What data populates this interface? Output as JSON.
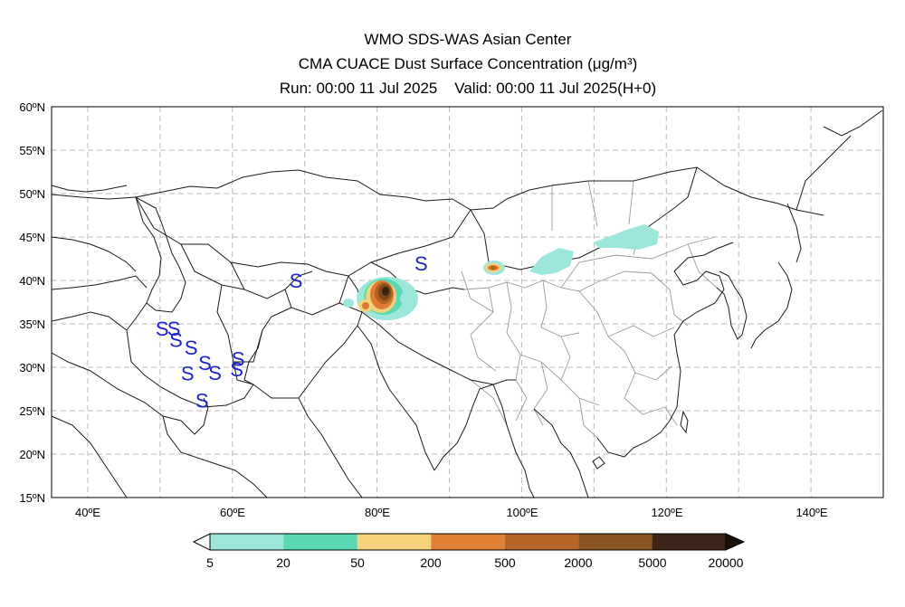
{
  "header": {
    "line1": "WMO SDS-WAS Asian Center",
    "line2": "CMA CUACE Dust Surface Concentration (μg/m³)",
    "line3": "Run: 00:00 11 Jul 2025    Valid: 00:00 11 Jul 2025(H+0)"
  },
  "map": {
    "lon_range": [
      35,
      150
    ],
    "lat_range": [
      15,
      60
    ],
    "lat_ticks": [
      "60ºN",
      "55ºN",
      "50ºN",
      "45ºN",
      "40ºN",
      "35ºN",
      "30ºN",
      "25ºN",
      "20ºN",
      "15ºN"
    ],
    "lon_ticks": [
      "40ºE",
      "60ºE",
      "80ºE",
      "100ºE",
      "120ºE",
      "140ºE"
    ],
    "grid": true,
    "station_symbol": "S",
    "station_color": "#1f24c8",
    "stations": [
      {
        "lon": 50.3,
        "lat": 34.5
      },
      {
        "lon": 51.9,
        "lat": 34.5
      },
      {
        "lon": 52.2,
        "lat": 33.2
      },
      {
        "lon": 54.3,
        "lat": 32.3
      },
      {
        "lon": 68.8,
        "lat": 40.0
      },
      {
        "lon": 56.2,
        "lat": 30.5
      },
      {
        "lon": 60.8,
        "lat": 31.0
      },
      {
        "lon": 53.8,
        "lat": 29.3
      },
      {
        "lon": 57.6,
        "lat": 29.4
      },
      {
        "lon": 60.6,
        "lat": 29.8
      },
      {
        "lon": 55.8,
        "lat": 26.2
      },
      {
        "lon": 86.1,
        "lat": 42.0
      }
    ],
    "dust_levels": [
      {
        "threshold": "5",
        "color": "#9de6dc"
      },
      {
        "threshold": "20",
        "color": "#5ad8b4"
      },
      {
        "threshold": "50",
        "color": "#f2d27a"
      },
      {
        "threshold": "200",
        "color": "#dd7b35"
      },
      {
        "threshold": "500",
        "color": "#b0621f"
      },
      {
        "threshold": "2000",
        "color": "#7f4a1c"
      },
      {
        "threshold": "5000",
        "color": "#3b2314"
      }
    ]
  },
  "colorbar": {
    "labels": [
      "5",
      "20",
      "50",
      "200",
      "500",
      "2000",
      "5000",
      "20000"
    ],
    "colors": [
      "#9de6dc",
      "#5ad8b4",
      "#f7d27d",
      "#e08035",
      "#b8652a",
      "#8a5424",
      "#3c2418"
    ],
    "under_color": "#ffffff",
    "over_color": "#1a1008"
  }
}
